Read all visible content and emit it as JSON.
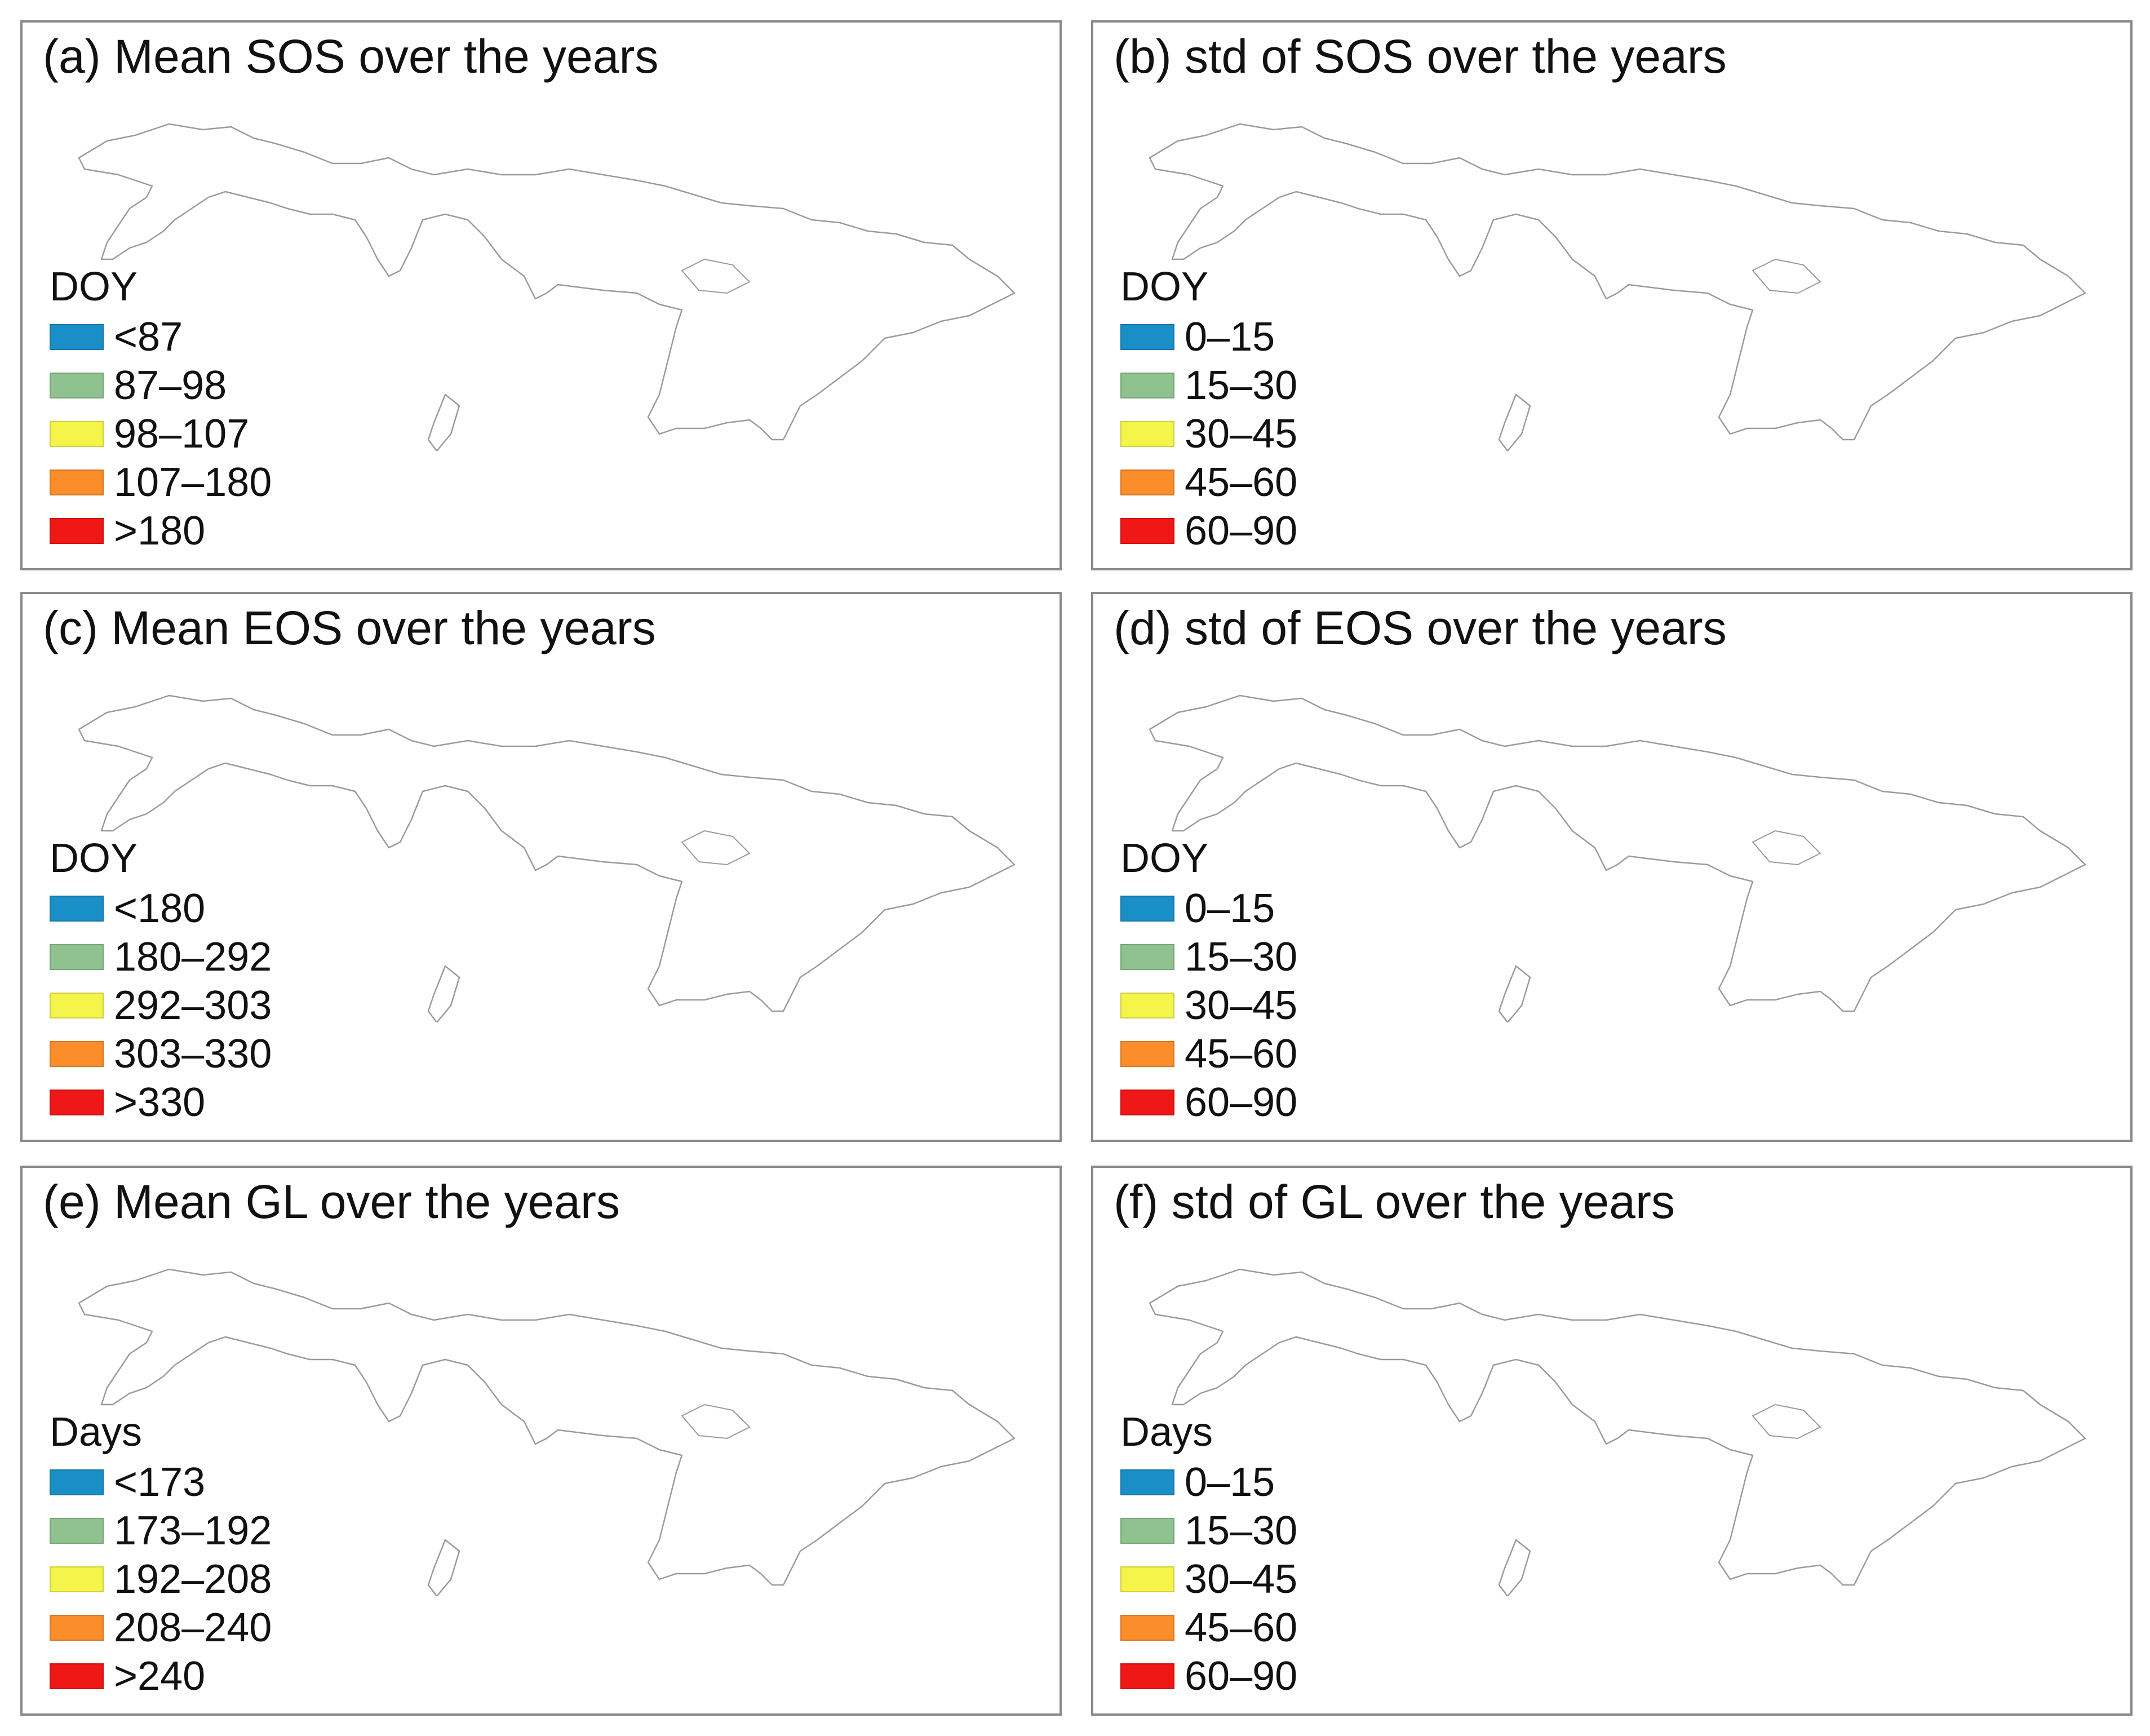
{
  "palette": [
    "#1a8ec7",
    "#8fc28f",
    "#f4f44a",
    "#fb8d2a",
    "#f01717"
  ],
  "panels": {
    "a": {
      "title": "(a) Mean SOS over the years",
      "legend_title": "DOY",
      "items": [
        "<87",
        "87–98",
        "98–107",
        "107–180",
        ">180"
      ]
    },
    "b": {
      "title": "(b) std of SOS over the years",
      "legend_title": "DOY",
      "items": [
        "0–15",
        "15–30",
        "30–45",
        "45–60",
        "60–90"
      ]
    },
    "c": {
      "title": "(c) Mean EOS over the years",
      "legend_title": "DOY",
      "items": [
        "<180",
        "180–292",
        "292–303",
        "303–330",
        ">330"
      ]
    },
    "d": {
      "title": "(d) std of EOS over the years",
      "legend_title": "DOY",
      "items": [
        "0–15",
        "15–30",
        "30–45",
        "45–60",
        "60–90"
      ]
    },
    "e": {
      "title": "(e) Mean GL over the years",
      "legend_title": "Days",
      "items": [
        "<173",
        "173–192",
        "192–208",
        "208–240",
        ">240"
      ]
    },
    "f": {
      "title": "(f) std of GL over the years",
      "legend_title": "Days",
      "items": [
        "0–15",
        "15–30",
        "30–45",
        "45–60",
        "60–90"
      ]
    }
  }
}
